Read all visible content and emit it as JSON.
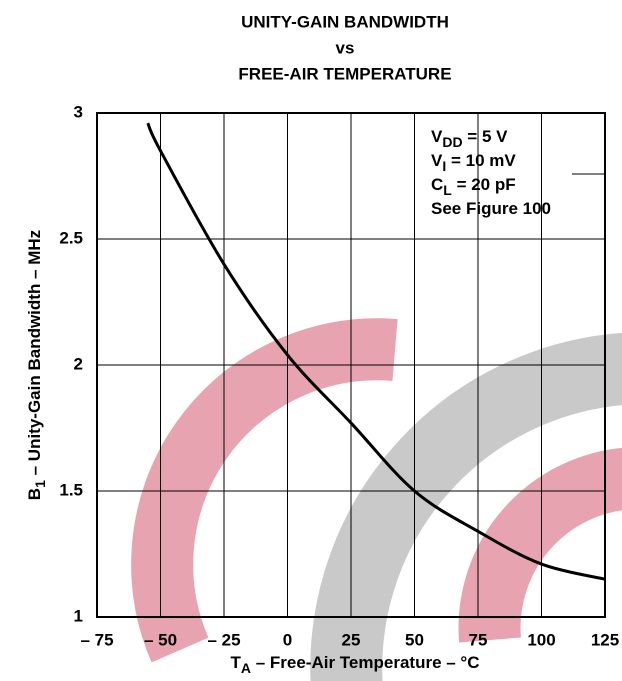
{
  "chart_data": {
    "type": "line",
    "title": [
      "UNITY-GAIN BANDWIDTH",
      "vs",
      "FREE-AIR TEMPERATURE"
    ],
    "x_label": {
      "main": "T",
      "sub": "A",
      "rest": " – Free-Air Temperature – °C"
    },
    "y_label": {
      "main": "B",
      "sub": "1",
      "rest": " – Unity-Gain Bandwidth – MHz"
    },
    "annotations": [
      {
        "main": "V",
        "sub": "DD",
        "rest": " = 5 V"
      },
      {
        "main": "V",
        "sub": "I",
        "rest": " = 10 mV"
      },
      {
        "main": "C",
        "sub": "L",
        "rest": " = 20 pF"
      },
      {
        "main": "See Figure 100"
      }
    ],
    "x": [
      -55,
      -50,
      -25,
      0,
      25,
      50,
      75,
      100,
      125
    ],
    "series": [
      {
        "color": "#000000",
        "values": [
          2.96,
          2.85,
          2.4,
          2.04,
          1.77,
          1.5,
          1.34,
          1.21,
          1.15
        ]
      }
    ],
    "xlim": [
      -75,
      125
    ],
    "xticks": [
      {
        "value": -75,
        "label": "– 75"
      },
      {
        "value": -50,
        "label": "– 50"
      },
      {
        "value": -25,
        "label": "– 25"
      },
      0,
      25,
      50,
      75,
      100,
      125
    ],
    "ylim": [
      1,
      3
    ],
    "yticks": [
      1,
      1.5,
      2,
      2.5,
      3
    ],
    "grid": true
  }
}
